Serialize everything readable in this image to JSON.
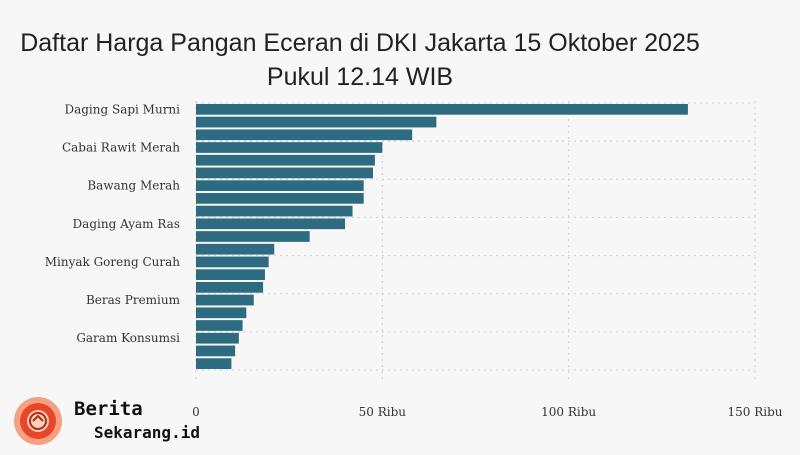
{
  "chart_data": {
    "type": "bar",
    "orientation": "horizontal",
    "title": "Daftar Harga Pangan Eceran di DKI Jakarta 15 Oktober 2025 Pukul 12.14 WIB",
    "categories": [
      "Daging Sapi Murni",
      "",
      "",
      "Cabai Rawit Merah",
      "",
      "",
      "Bawang Merah",
      "",
      "",
      "Daging Ayam Ras",
      "",
      "",
      "Minyak Goreng Curah",
      "",
      "",
      "Beras Premium",
      "",
      "",
      "Garam Konsumsi",
      "",
      ""
    ],
    "values": [
      132000,
      64500,
      58000,
      50000,
      48000,
      47500,
      45000,
      45000,
      42000,
      40000,
      30500,
      21000,
      19500,
      18500,
      18000,
      15500,
      13500,
      12500,
      11500,
      10500,
      9500
    ],
    "xlim": [
      0,
      150000
    ],
    "xticks": [
      {
        "value": 0,
        "label": "0"
      },
      {
        "value": 50000,
        "label": "50 Ribu"
      },
      {
        "value": 100000,
        "label": "100 Ribu"
      },
      {
        "value": 150000,
        "label": "150 Ribu"
      }
    ],
    "grid": true,
    "bar_color": "#2d6b80"
  },
  "logo": {
    "line1": "Berita",
    "line2": "Sekarang.id"
  }
}
